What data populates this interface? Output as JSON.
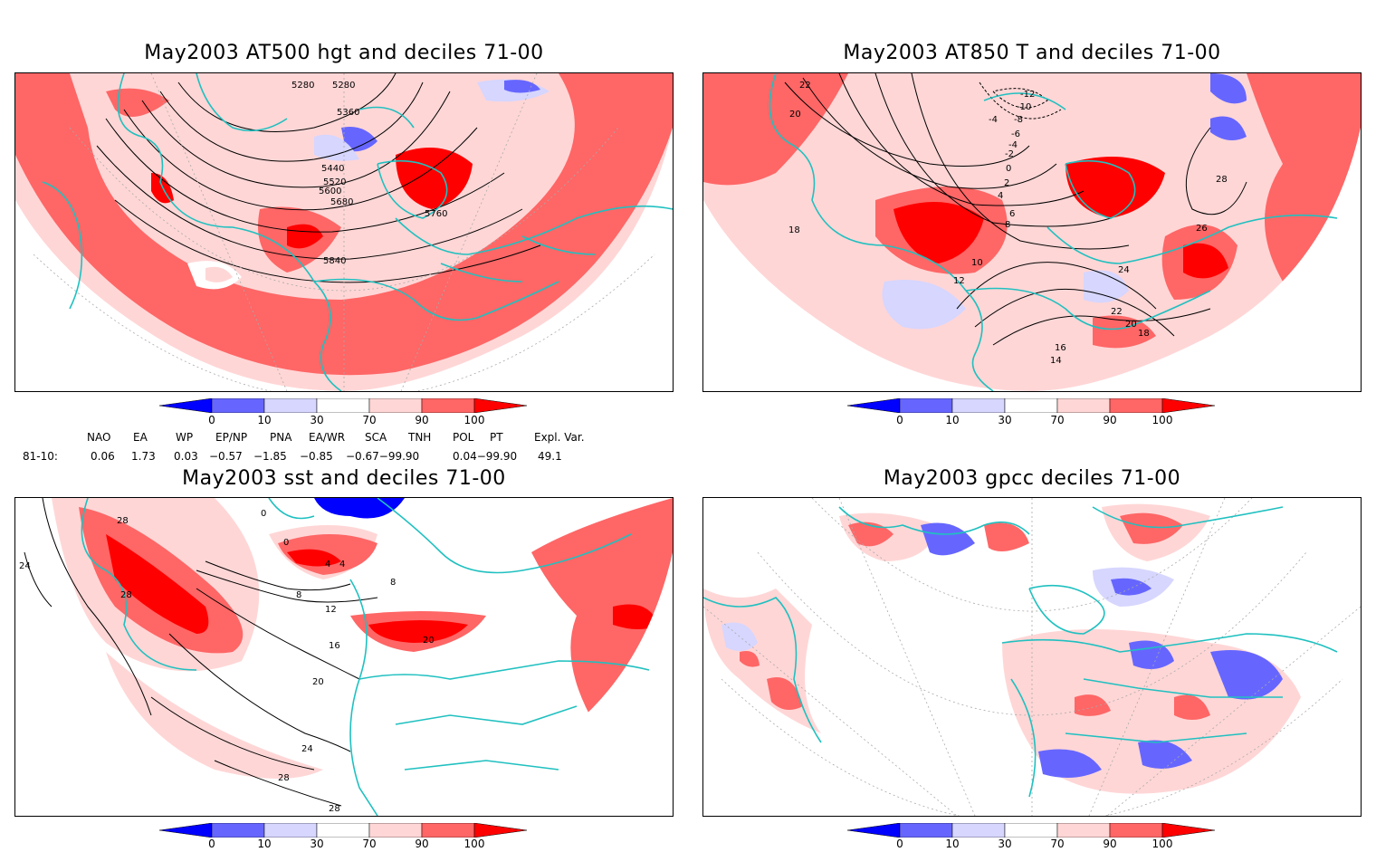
{
  "panels": [
    {
      "title": "May2003 AT500 hgt and deciles 71-00",
      "contour_labels": [
        "5280",
        "5280",
        "5360",
        "5440",
        "5520",
        "5600",
        "5680",
        "5760",
        "5840"
      ]
    },
    {
      "title": "May2003 AT850 T and deciles 71-00",
      "contour_labels": [
        "22",
        "20",
        "18",
        "-12",
        "-10",
        "-8",
        "-6",
        "-4",
        "-2",
        "0",
        "2",
        "4",
        "6",
        "8",
        "10",
        "12",
        "14",
        "16",
        "18",
        "20",
        "22",
        "24",
        "26",
        "28",
        "-4"
      ]
    },
    {
      "title": "May2003 sst and deciles 71-00",
      "contour_labels": [
        "28",
        "28",
        "24",
        "0",
        "0",
        "4",
        "4",
        "8",
        "8",
        "12",
        "16",
        "20",
        "20",
        "24",
        "28",
        "28"
      ]
    },
    {
      "title": "May2003 gpcc deciles 71-00",
      "contour_labels": []
    }
  ],
  "colorbar": {
    "ticks": [
      "0",
      "10",
      "30",
      "70",
      "90",
      "100"
    ],
    "colors": [
      "#0000ff",
      "#6666ff",
      "#d6d6ff",
      "#ffffff",
      "#ffd6d6",
      "#ff6666",
      "#ff0000"
    ]
  },
  "indices": {
    "headers": [
      "NAO",
      "EA",
      "WP",
      "EP/NP",
      "PNA",
      "EA/WR",
      "SCA",
      "TNH",
      "POL",
      "PT",
      "Expl. Var."
    ],
    "row_label": "81-10:",
    "values": [
      "0.06",
      "1.73",
      "0.03",
      "−0.57",
      "−1.85",
      "−0.85",
      "−0.67−99.90",
      "",
      "0.04−99.90",
      "",
      "49.1"
    ]
  },
  "colors": {
    "coast": "#20c0c0",
    "strong_red": "#ff0000",
    "mid_red": "#ff6666",
    "light_red": "#ffd6d6",
    "light_blue": "#d6d6ff",
    "mid_blue": "#6666ff",
    "strong_blue": "#0000ff"
  }
}
